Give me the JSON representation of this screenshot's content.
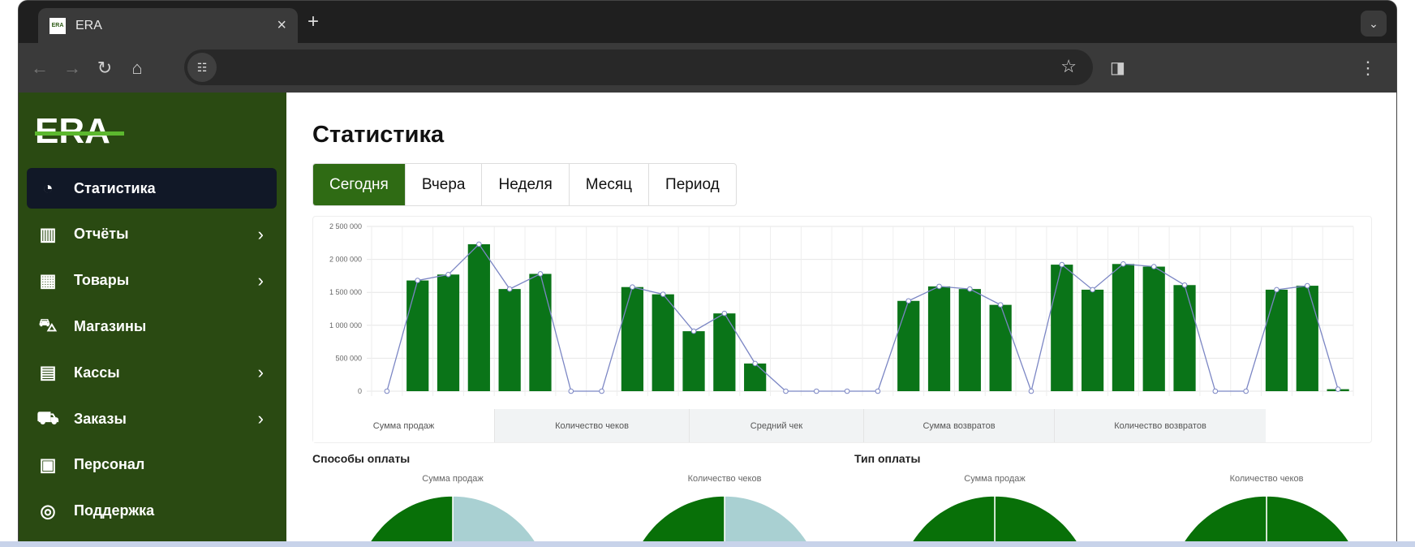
{
  "browser": {
    "tab_title": "ERA",
    "favicon_text": "ERA",
    "new_tab": "+",
    "close": "×"
  },
  "sidebar": {
    "logo": "ERA",
    "items": [
      {
        "label": "Статистика",
        "icon": "pie-chart-icon",
        "active": true,
        "chevron": false
      },
      {
        "label": "Отчёты",
        "icon": "bar-chart-icon",
        "chevron": true
      },
      {
        "label": "Товары",
        "icon": "grid-icon",
        "chevron": true
      },
      {
        "label": "Магазины",
        "icon": "cart-icon",
        "chevron": false
      },
      {
        "label": "Кассы",
        "icon": "calculator-icon",
        "chevron": true
      },
      {
        "label": "Заказы",
        "icon": "truck-icon",
        "chevron": true
      },
      {
        "label": "Персонал",
        "icon": "id-card-icon",
        "chevron": false
      },
      {
        "label": "Поддержка",
        "icon": "lifebuoy-icon",
        "chevron": false
      }
    ]
  },
  "main": {
    "title": "Статистика",
    "period_tabs": [
      "Сегодня",
      "Вчера",
      "Неделя",
      "Месяц",
      "Период"
    ],
    "active_period": 0,
    "metric_tabs": [
      "Сумма продаж",
      "Количество чеков",
      "Средний чек",
      "Сумма возвратов",
      "Количество возвратов"
    ],
    "active_metric": 0,
    "payment_methods_title": "Способы оплаты",
    "payment_type_title": "Тип оплаты"
  },
  "colors": {
    "accent": "#2f6b14",
    "bar": "#0a7418",
    "line": "#7b86c4",
    "sidebar": "#2a4a12",
    "pie_light": "#a9d0d2",
    "pie_green": "#087008"
  },
  "chart_data": [
    {
      "type": "bar",
      "ylim": [
        0,
        2500000
      ],
      "yticks": [
        "0",
        "500 000",
        "1 000 000",
        "1 500 000",
        "2 000 000",
        "2 500 000"
      ],
      "grid": true,
      "series": [
        {
          "values": [
            0,
            1680000,
            1770000,
            2230000,
            1550000,
            1780000,
            0,
            0,
            1580000,
            1470000,
            910000,
            1180000,
            420000,
            0,
            0,
            0,
            0,
            1370000,
            1590000,
            1550000,
            1310000,
            0,
            1920000,
            1540000,
            1930000,
            1890000,
            1610000,
            0,
            0,
            1540000,
            1600000,
            30000
          ]
        }
      ],
      "overlay_line": "same values"
    },
    {
      "type": "pie",
      "title": "Сумма продаж",
      "values": [
        50,
        50
      ],
      "colors": [
        "#a9d0d2",
        "#087008"
      ]
    },
    {
      "type": "pie",
      "title": "Количество чеков",
      "values": [
        50,
        50
      ],
      "colors": [
        "#a9d0d2",
        "#087008"
      ]
    },
    {
      "type": "pie",
      "title": "Сумма продаж",
      "values": [
        50,
        50
      ],
      "colors": [
        "#087008",
        "#087008"
      ]
    },
    {
      "type": "pie",
      "title": "Количество чеков",
      "values": [
        50,
        50
      ],
      "colors": [
        "#087008",
        "#087008"
      ]
    }
  ]
}
